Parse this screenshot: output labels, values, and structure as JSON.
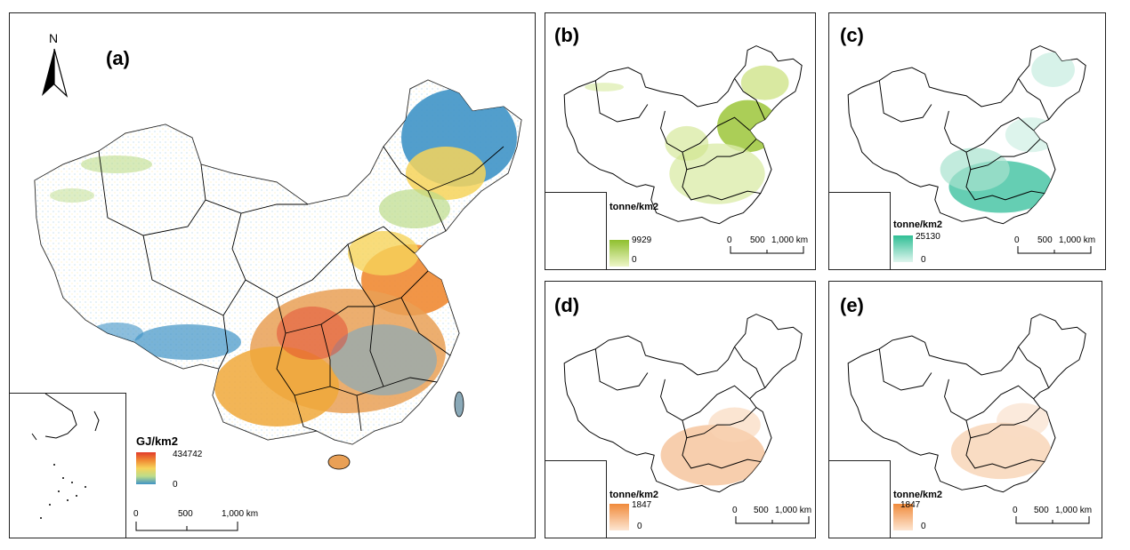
{
  "panels": {
    "a": {
      "label": "(a)",
      "legend_title": "GJ/km2",
      "legend_max": "434742",
      "legend_min": "0",
      "ramp_colors": [
        "#e23b2a",
        "#f08a33",
        "#f6d35a",
        "#bcdc8a",
        "#3f93c6"
      ]
    },
    "b": {
      "label": "(b)",
      "legend_title": "tonne/km2",
      "legend_max": "9929",
      "legend_min": "0",
      "ramp_colors": [
        "#8fbf2e",
        "#eef6c8"
      ]
    },
    "c": {
      "label": "(c)",
      "legend_title": "tonne/km2",
      "legend_max": "25130",
      "legend_min": "0",
      "ramp_colors": [
        "#2fbf95",
        "#dff5ee"
      ]
    },
    "d": {
      "label": "(d)",
      "legend_title": "tonne/km2",
      "legend_max": "1847",
      "legend_min": "0",
      "ramp_colors": [
        "#f08a3a",
        "#fde6d2"
      ]
    },
    "e": {
      "label": "(e)",
      "legend_title": "tonne/km2",
      "legend_max": "1847",
      "legend_min": "0",
      "ramp_colors": [
        "#f08a3a",
        "#fde6d2"
      ]
    }
  },
  "scale_bar": {
    "ticks": [
      "0",
      "500",
      "1,000 km"
    ]
  },
  "north_arrow": {
    "label": "N",
    "icon": "north-arrow-icon"
  }
}
